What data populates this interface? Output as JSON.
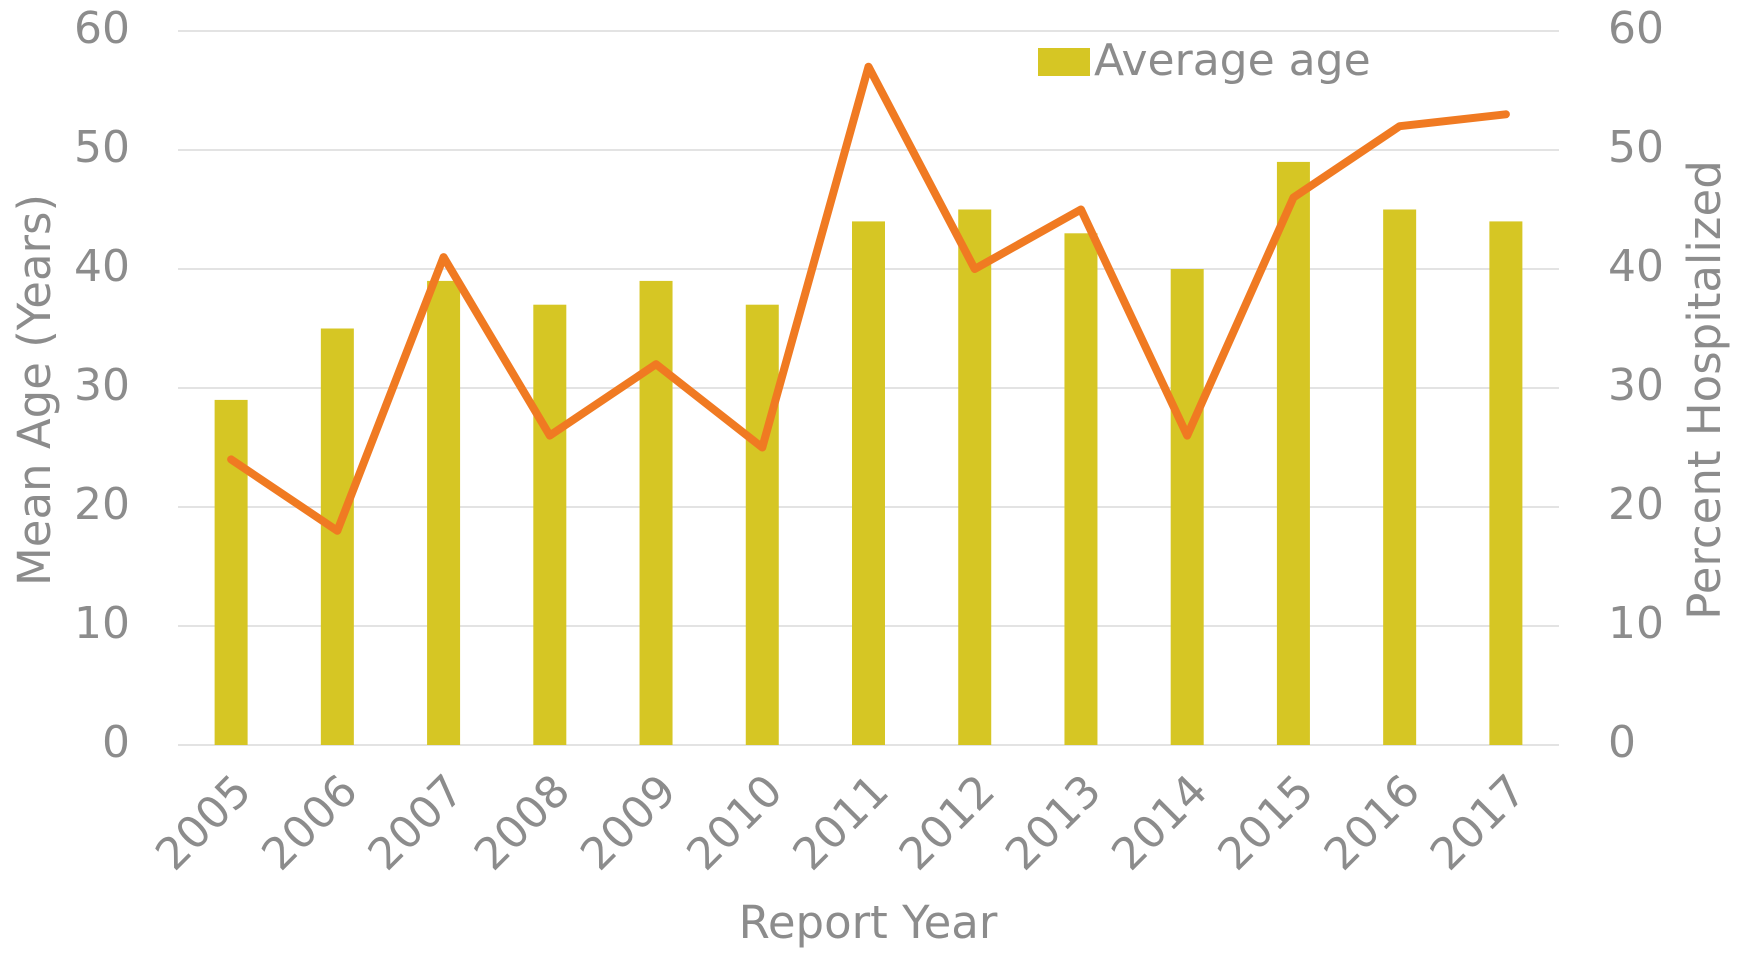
{
  "chart_data": {
    "type": "bar",
    "xlabel": "Report Year",
    "ylabel": "Mean Age (Years)",
    "y2label": "Percent Hospitalized",
    "categories": [
      "2005",
      "2006",
      "2007",
      "2008",
      "2009",
      "2010",
      "2011",
      "2012",
      "2013",
      "2014",
      "2015",
      "2016",
      "2017"
    ],
    "series": [
      {
        "name": "Average age",
        "type": "bar",
        "color": "#d6c624",
        "values": [
          29,
          35,
          39,
          37,
          39,
          37,
          44,
          45,
          43,
          40,
          49,
          45,
          44
        ]
      },
      {
        "type": "line",
        "axis": "y2",
        "color": "#f07a22",
        "values": [
          24,
          18,
          41,
          26,
          32,
          25,
          57,
          40,
          45,
          26,
          46,
          52,
          53
        ]
      }
    ],
    "ylim": [
      0,
      60
    ],
    "yticks": [
      0,
      10,
      20,
      30,
      40,
      50,
      60
    ],
    "y2lim": [
      0,
      60
    ],
    "y2ticks": [
      0,
      10,
      20,
      30,
      40,
      50,
      60
    ],
    "grid": true,
    "legend": "top"
  }
}
